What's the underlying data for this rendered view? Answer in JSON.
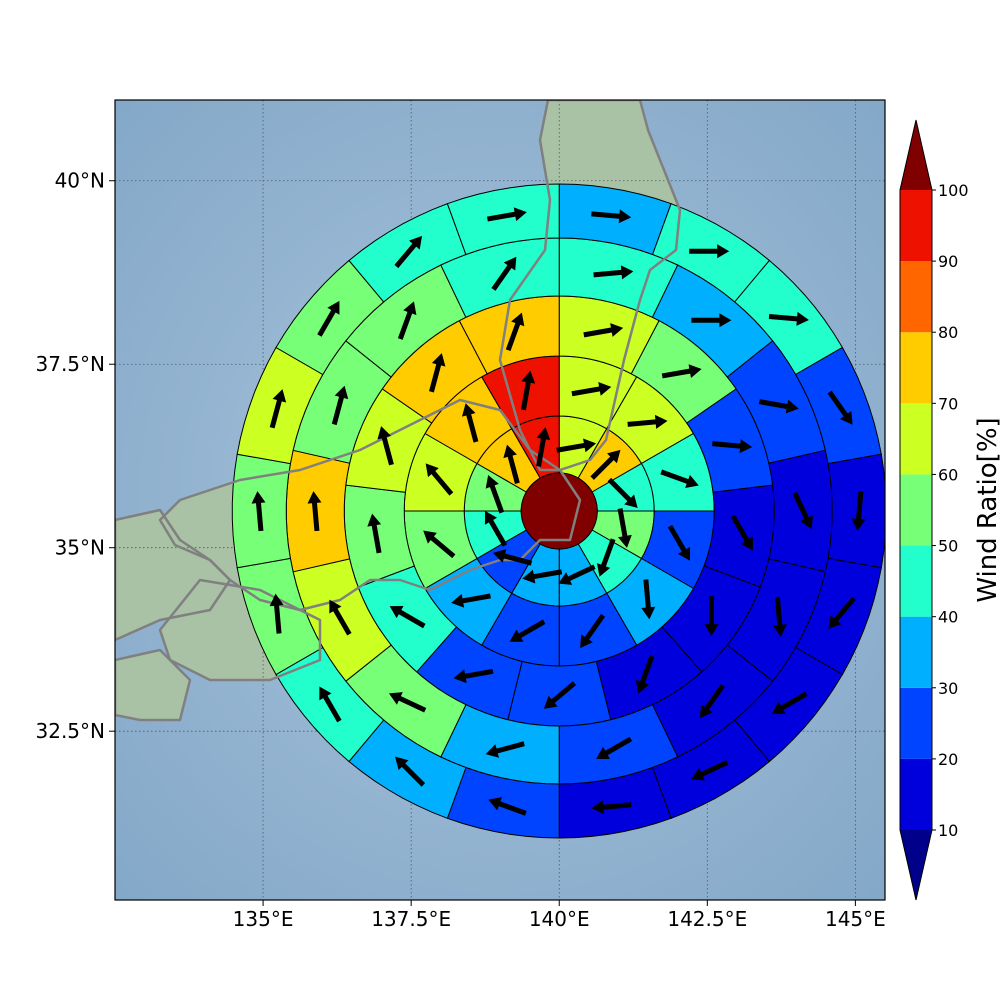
{
  "chart_data": {
    "type": "heatmap",
    "subtype": "polar sector map with wind vector arrows over a relief map",
    "map": {
      "lon_ticks": [
        135,
        137.5,
        140,
        142.5,
        145
      ],
      "lon_tick_labels": [
        "135°E",
        "137.5°E",
        "140°E",
        "142.5°E",
        "145°E"
      ],
      "lat_ticks": [
        32.5,
        35,
        37.5,
        40
      ],
      "lat_tick_labels": [
        "32.5°N",
        "35°N",
        "37.5°N",
        "40°N"
      ],
      "lon_range": [
        132.5,
        145.5
      ],
      "lat_range": [
        30.2,
        41.1
      ],
      "grid": true,
      "land_color": "#a9c2a5",
      "sea_color": "#8fb2d2",
      "coastline_color": "#808080"
    },
    "rings": {
      "center": {
        "lon": 140,
        "lat": 35.5
      },
      "center_disk_color": "#800000",
      "sector_values": [
        [
          60,
          75,
          45,
          55,
          45,
          30,
          30,
          20,
          45,
          50,
          70,
          95
        ],
        [
          60,
          65,
          45,
          20,
          35,
          25,
          20,
          30,
          50,
          60,
          70,
          95
        ],
        [
          60,
          55,
          25,
          15,
          15,
          15,
          20,
          25,
          40,
          55,
          65,
          70,
          75
        ],
        [
          40,
          35,
          20,
          15,
          10,
          15,
          25,
          35,
          55,
          60,
          70,
          55,
          50,
          45
        ],
        [
          30,
          45,
          40,
          20,
          15,
          10,
          10,
          15,
          10,
          20,
          30,
          40,
          50,
          55,
          65,
          55,
          40,
          45
        ]
      ],
      "wind_directions_deg": [
        [
          80,
          45,
          135,
          170,
          200,
          245,
          260,
          285,
          330,
          340,
          345,
          10
        ],
        [
          80,
          85,
          110,
          150,
          175,
          215,
          240,
          260,
          310,
          320,
          345,
          10
        ],
        [
          80,
          80,
          95,
          150,
          180,
          200,
          230,
          260,
          300,
          350,
          345,
          15,
          20
        ],
        [
          85,
          90,
          100,
          155,
          175,
          215,
          240,
          255,
          295,
          330,
          355,
          15,
          20,
          35
        ],
        [
          95,
          90,
          95,
          145,
          185,
          220,
          240,
          245,
          265,
          290,
          315,
          330,
          355,
          355,
          15,
          30,
          40,
          80
        ]
      ]
    },
    "colorbar": {
      "label": "Wind Ratio[%]",
      "ticks": [
        10,
        20,
        30,
        40,
        50,
        60,
        70,
        80,
        90,
        100
      ],
      "bins": [
        {
          "range": [
            10,
            20
          ],
          "color": "#0000dd"
        },
        {
          "range": [
            20,
            30
          ],
          "color": "#0044ff"
        },
        {
          "range": [
            30,
            40
          ],
          "color": "#00b0ff"
        },
        {
          "range": [
            40,
            50
          ],
          "color": "#22ffcc"
        },
        {
          "range": [
            50,
            60
          ],
          "color": "#77ff77"
        },
        {
          "range": [
            60,
            70
          ],
          "color": "#ccff22"
        },
        {
          "range": [
            70,
            80
          ],
          "color": "#ffcc00"
        },
        {
          "range": [
            80,
            90
          ],
          "color": "#ff6600"
        },
        {
          "range": [
            90,
            100
          ],
          "color": "#ee1100"
        }
      ],
      "under_color": "#00008b",
      "over_color": "#800000",
      "extend": "both"
    }
  }
}
